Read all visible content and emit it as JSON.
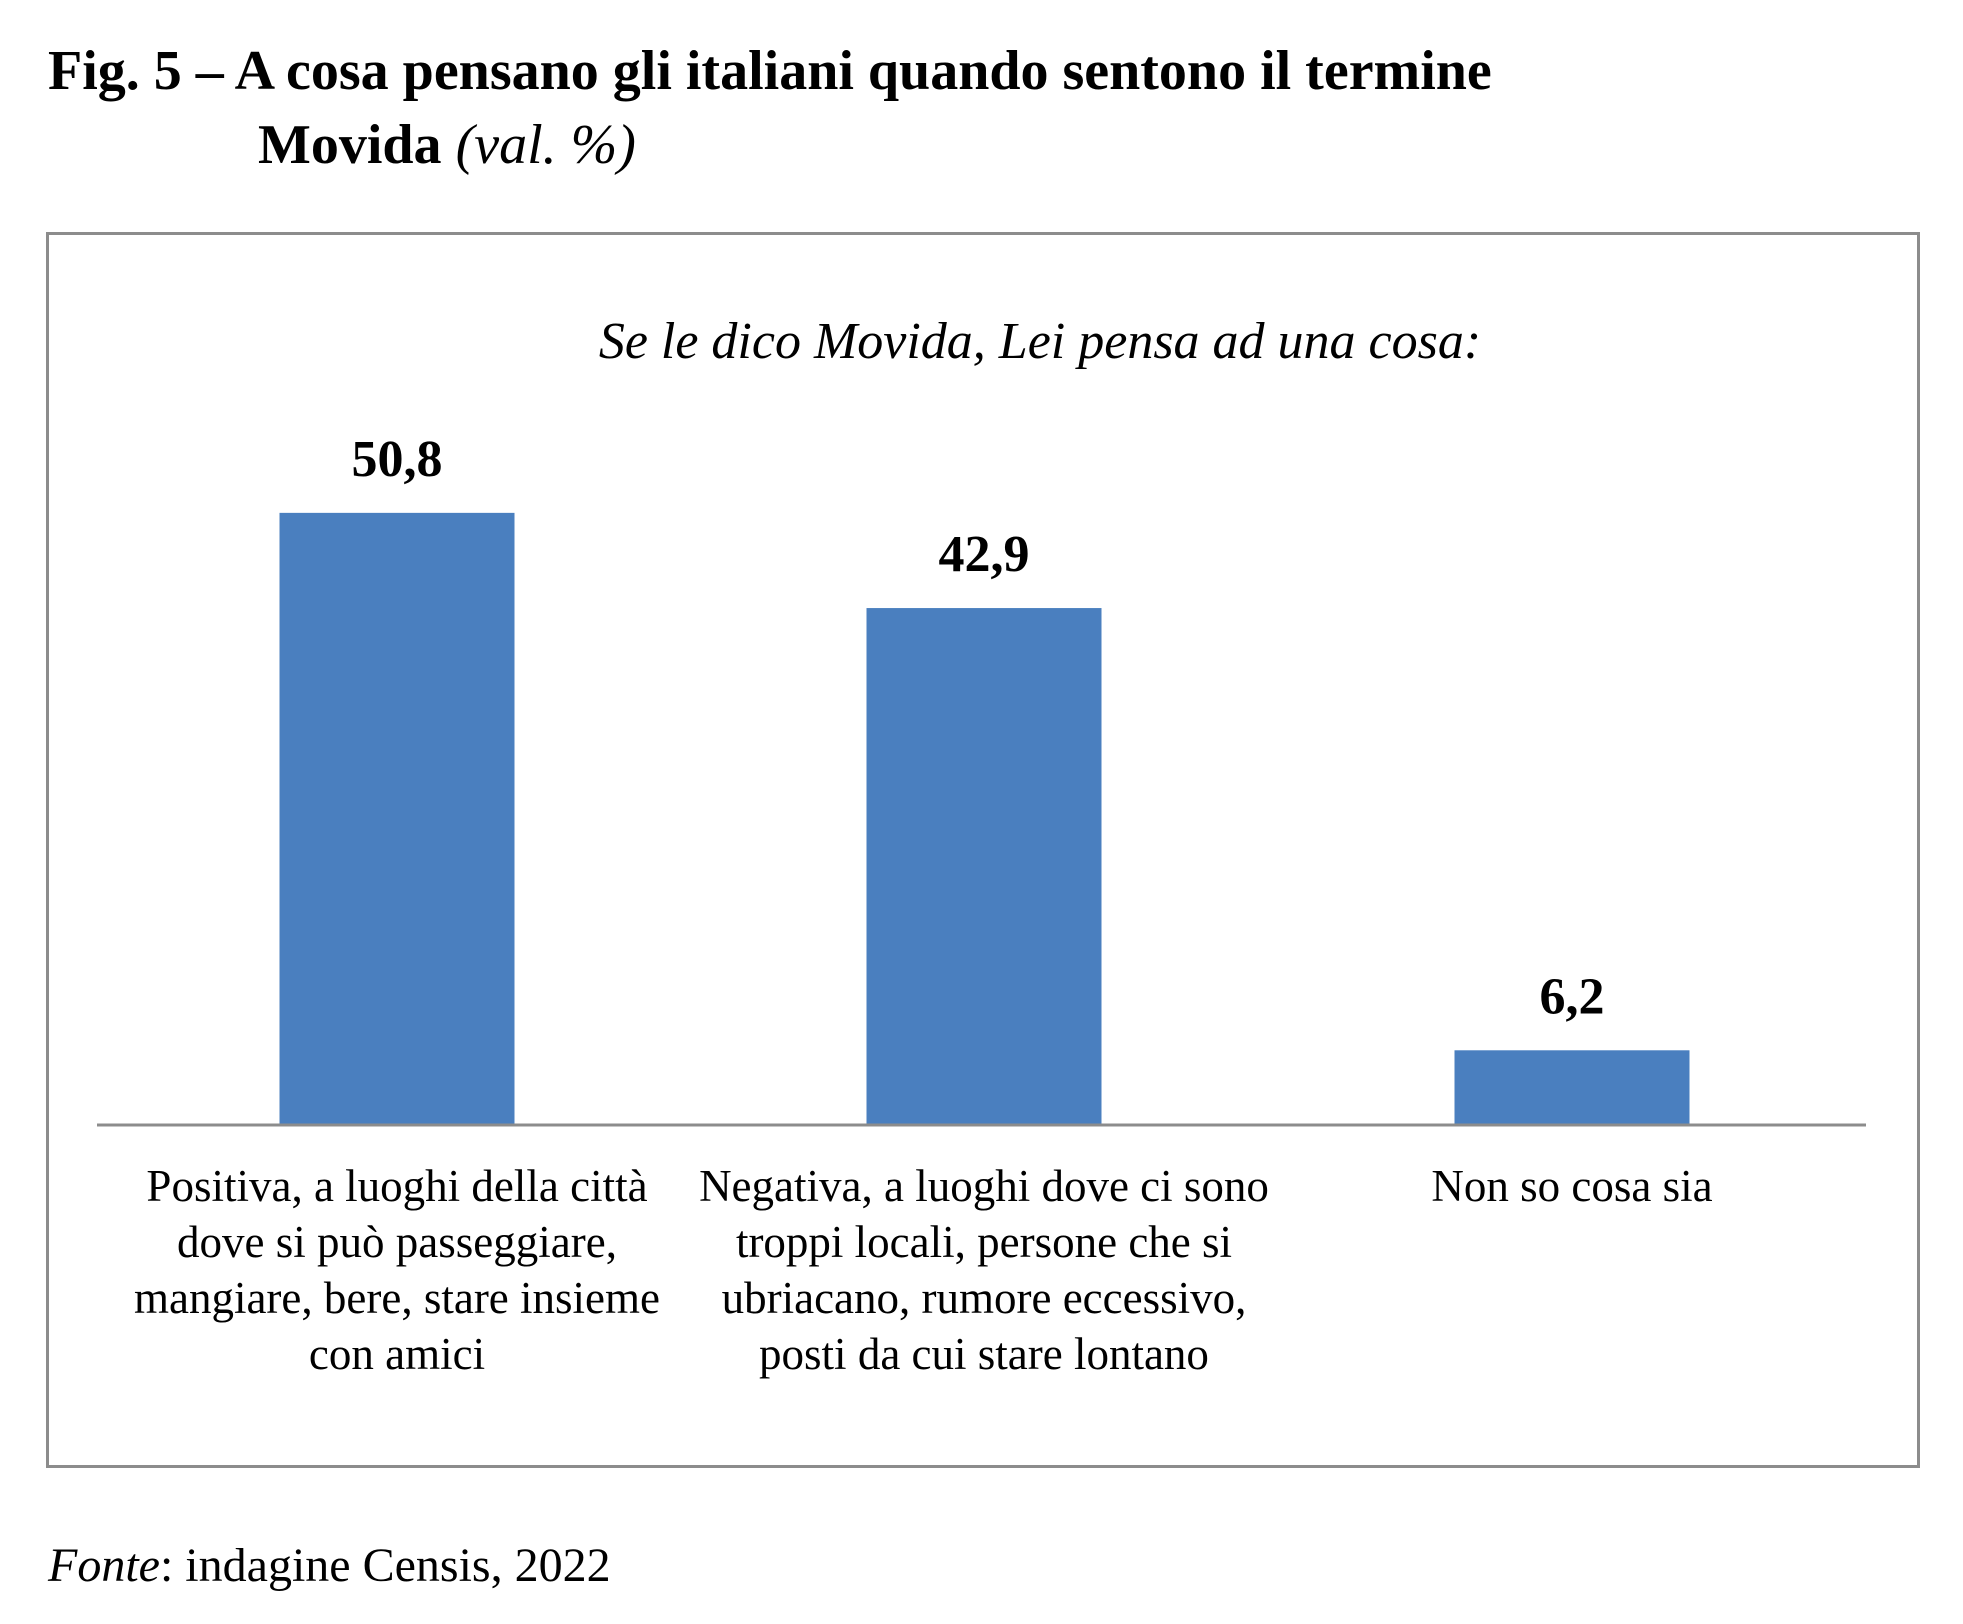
{
  "figure": {
    "title_line1": "Fig. 5 – A cosa pensano gli italiani quando sentono il termine",
    "title_line2": "Movida",
    "title_unit": "(val. %)"
  },
  "chart_data": {
    "type": "bar",
    "subtitle": "Se le dico Movida, Lei pensa ad una cosa:",
    "categories": [
      "Positiva, a luoghi della città dove si può passeggiare, mangiare, bere, stare insieme con amici",
      "Negativa, a luoghi dove ci sono troppi locali, persone che si ubriacano, rumore eccessivo, posti da cui stare lontano",
      "Non so cosa sia"
    ],
    "values": [
      50.8,
      42.9,
      6.2
    ],
    "value_labels": [
      "50,8",
      "42,9",
      "6,2"
    ],
    "ylim": [
      0,
      100
    ],
    "grid": false,
    "bar_color": "#4a7fbf",
    "axis_color": "#8c8c8c"
  },
  "source": {
    "label": "Fonte",
    "text": ": indagine Censis, 2022"
  }
}
